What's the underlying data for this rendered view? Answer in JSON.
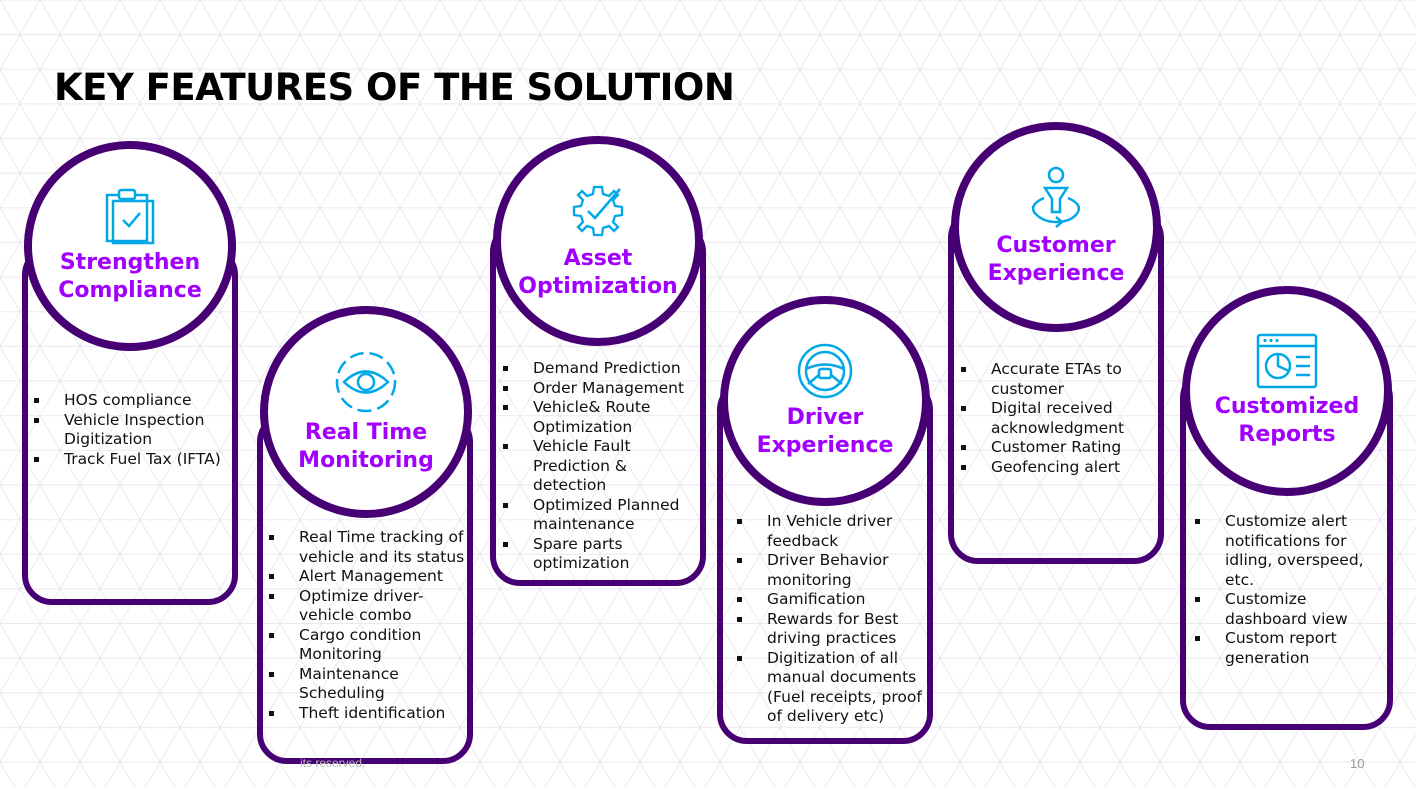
{
  "title": "KEY FEATURES OF THE SOLUTION",
  "colors": {
    "accent": "#a100ff",
    "outline": "#460073",
    "icon": "#00a8e8"
  },
  "features": [
    {
      "icon": "clipboard-check-icon",
      "title_lines": [
        "Strengthen",
        "Compliance"
      ],
      "bullets": [
        "HOS compliance",
        "Vehicle Inspection Digitization",
        "Track Fuel Tax (IFTA)"
      ]
    },
    {
      "icon": "eye-icon",
      "title_lines": [
        "Real Time",
        "Monitoring"
      ],
      "bullets": [
        "Real Time tracking of vehicle and its status",
        "Alert Management",
        "Optimize driver-vehicle combo",
        "Cargo condition Monitoring",
        "Maintenance Scheduling",
        "Theft identification"
      ]
    },
    {
      "icon": "gear-check-icon",
      "title_lines": [
        "Asset",
        "Optimization"
      ],
      "bullets": [
        "Demand Prediction",
        "Order Management",
        "Vehicle& Route Optimization",
        "Vehicle Fault Prediction & detection",
        "Optimized Planned maintenance",
        "Spare parts optimization"
      ]
    },
    {
      "icon": "steering-wheel-icon",
      "title_lines": [
        "Driver",
        "Experience"
      ],
      "bullets": [
        "In Vehicle driver feedback",
        "Driver Behavior monitoring",
        "Gamification",
        "Rewards for Best driving practices",
        "Digitization of all manual documents (Fuel receipts, proof of delivery etc)"
      ]
    },
    {
      "icon": "person-location-icon",
      "title_lines": [
        "Customer",
        "Experience"
      ],
      "bullets": [
        "Accurate ETAs to customer",
        "Digital received acknowledgment",
        "Customer Rating",
        "Geofencing alert"
      ]
    },
    {
      "icon": "dashboard-report-icon",
      "title_lines": [
        "Customized",
        "Reports"
      ],
      "bullets": [
        "Customize alert notifications for idling, overspeed, etc.",
        "Customize dashboard view",
        "Custom report generation"
      ]
    }
  ],
  "footer": {
    "copyright_fragment": "its reserved.",
    "page_number": "10"
  }
}
